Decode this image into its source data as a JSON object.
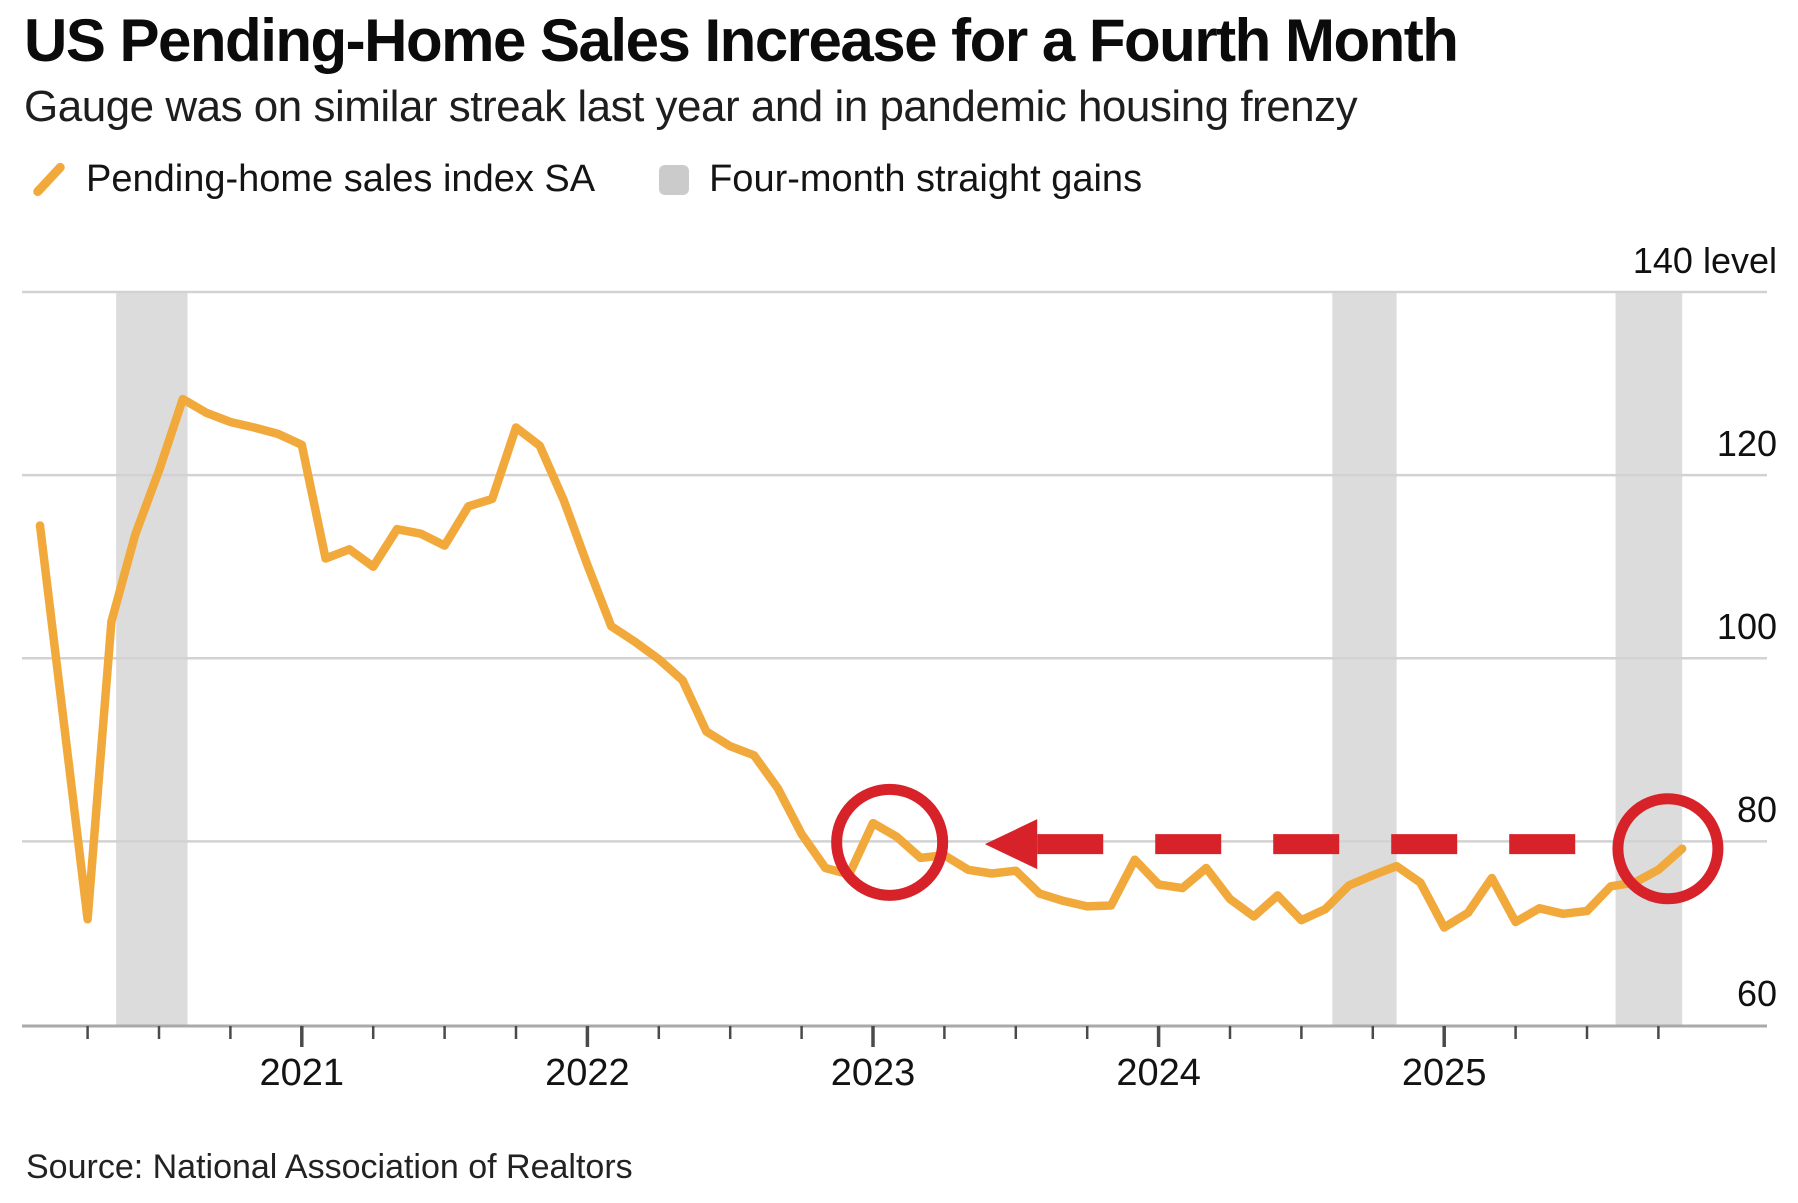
{
  "header": {
    "title": "US Pending-Home Sales Increase for a Fourth Month",
    "subtitle": "Gauge was on similar streak last year and in pandemic housing frenzy"
  },
  "legend": {
    "items": [
      {
        "label": "Pending-home sales index SA",
        "swatch": "line"
      },
      {
        "label": "Four-month straight gains",
        "swatch": "band"
      }
    ]
  },
  "source": "Source: National Association of Realtors",
  "colors": {
    "line": "#F2A93C",
    "red": "#D8222A",
    "band": "#DCDCDC",
    "grid": "#D2D2D2",
    "axis": "#A9A9A9",
    "tick": "#4A4A4A"
  },
  "chart_data": {
    "type": "line",
    "title": "US Pending-Home Sales Increase for a Fourth Month",
    "ylabel": "level",
    "ylim": [
      60,
      140
    ],
    "grid": "horizontal",
    "legend_position": "top-left",
    "x_start": "2020-02",
    "x_frequency": "monthly",
    "series": [
      {
        "name": "Pending-home sales index SA",
        "values": [
          114.5,
          93.0,
          71.5,
          104.0,
          113.5,
          120.5,
          128.3,
          126.8,
          125.8,
          125.2,
          124.5,
          123.3,
          110.9,
          111.9,
          110.0,
          114.1,
          113.6,
          112.3,
          116.6,
          117.4,
          125.2,
          123.2,
          117.3,
          110.2,
          103.5,
          101.8,
          99.9,
          97.6,
          92.0,
          90.4,
          89.4,
          85.8,
          80.8,
          77.1,
          76.4,
          82.0,
          80.5,
          78.2,
          78.5,
          76.9,
          76.5,
          76.8,
          74.3,
          73.5,
          72.9,
          73.0,
          78.0,
          75.3,
          74.9,
          77.1,
          73.7,
          71.8,
          74.1,
          71.4,
          72.6,
          75.2,
          76.3,
          77.3,
          75.5,
          70.6,
          72.2,
          76.0,
          71.2,
          72.7,
          72.1,
          72.4,
          75.1,
          75.5,
          76.9,
          79.2
        ]
      }
    ],
    "y_ticks": [
      {
        "value": 140,
        "label": "140 level"
      },
      {
        "value": 120,
        "label": "120"
      },
      {
        "value": 100,
        "label": "100"
      },
      {
        "value": 80,
        "label": "80"
      },
      {
        "value": 60,
        "label": "60"
      }
    ],
    "x_ticks": [
      {
        "label": "2021",
        "index": 11
      },
      {
        "label": "2022",
        "index": 23
      },
      {
        "label": "2023",
        "index": 35
      },
      {
        "label": "2024",
        "index": 47
      },
      {
        "label": "2025",
        "index": 59
      }
    ],
    "gain_bands": {
      "name": "Four-month straight gains",
      "ranges": [
        {
          "from_index": 3.2,
          "to_index": 6.2
        },
        {
          "from_index": 54.3,
          "to_index": 57.0
        },
        {
          "from_index": 66.2,
          "to_index": 69.0
        }
      ]
    },
    "annotations": {
      "circles": [
        {
          "index": 35.7,
          "value": 79.9,
          "radius_px": 53
        },
        {
          "index": 68.4,
          "value": 79.2,
          "radius_px": 50
        }
      ],
      "arrow": {
        "value": 79.7,
        "tail_index": 66.0,
        "head_base_index": 41.9,
        "tip_index": 39.7
      }
    }
  }
}
